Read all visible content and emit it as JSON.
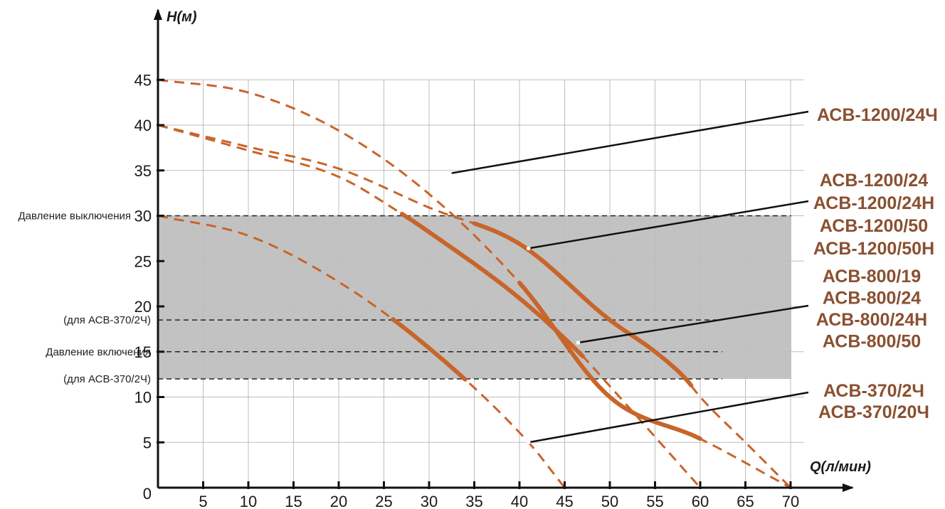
{
  "chart_data": {
    "type": "line",
    "xlabel": "Q(л/мин)",
    "ylabel": "H(м)",
    "xlim": [
      0,
      70
    ],
    "ylim": [
      0,
      45
    ],
    "x_ticks": [
      0,
      5,
      10,
      15,
      20,
      25,
      30,
      35,
      40,
      45,
      50,
      55,
      60,
      65,
      70
    ],
    "y_ticks": [
      5,
      10,
      15,
      20,
      25,
      30,
      35,
      40,
      45
    ],
    "origin_label": "0",
    "grid": true,
    "colors": {
      "curve": "#c8652a",
      "label": "#8a5030",
      "band": "#c2c2c2",
      "grid": "#bdbdbd",
      "axis": "#111111"
    },
    "pressure_band": {
      "from": 12,
      "to": 30
    },
    "pressure_lines": [
      {
        "y": 30,
        "label": "Давление выключения"
      },
      {
        "y": 18.5,
        "label": "(для АСВ-370/2Ч)"
      },
      {
        "y": 15,
        "label": "Давление включения"
      },
      {
        "y": 12,
        "label": "(для АСВ-370/2Ч)"
      }
    ],
    "series": [
      {
        "name": "АСВ-1200/24Ч",
        "x": [
          0,
          10,
          20,
          30,
          40,
          50,
          60,
          70
        ],
        "y": [
          45,
          43.6,
          39.4,
          32.4,
          22.6,
          10,
          5.4,
          0
        ],
        "solid_range": [
          40,
          60
        ]
      },
      {
        "name": "АСВ-1200/24",
        "x": [
          0,
          10,
          20,
          30,
          40,
          50,
          55,
          58.4,
          60,
          65,
          70
        ],
        "y": [
          40,
          37.6,
          35.2,
          30.9,
          26.9,
          18.5,
          15,
          12,
          10,
          5,
          0
        ],
        "solid_range": [
          35,
          59
        ]
      },
      {
        "name": "АСВ-800/19",
        "x": [
          0,
          10,
          20,
          27,
          30,
          40,
          47,
          50,
          60
        ],
        "y": [
          40,
          37.2,
          34.3,
          30.2,
          28.2,
          20.9,
          14.5,
          11.2,
          0
        ],
        "solid_range": [
          27,
          47
        ]
      },
      {
        "name": "АСВ-370/2Ч",
        "x": [
          0,
          10,
          20,
          30,
          41,
          45
        ],
        "y": [
          30,
          27.8,
          22.7,
          15.4,
          5,
          0
        ],
        "solid_range": [
          26,
          34
        ]
      }
    ],
    "labels": [
      {
        "lines": [
          "АСВ-1200/24Ч"
        ],
        "anchor": [
          32.5,
          34.7
        ]
      },
      {
        "lines": [
          "АСВ-1200/24",
          "АСВ-1200/24Н",
          "АСВ-1200/50",
          "АСВ-1200/50Н"
        ],
        "anchor": [
          41,
          26.4
        ]
      },
      {
        "lines": [
          "АСВ-800/19",
          "АСВ-800/24",
          "АСВ-800/24Н",
          "АСВ-800/50"
        ],
        "anchor": [
          46.5,
          16
        ]
      },
      {
        "lines": [
          "АСВ-370/2Ч",
          "АСВ-370/20Ч"
        ],
        "anchor": [
          41,
          5
        ]
      }
    ]
  }
}
